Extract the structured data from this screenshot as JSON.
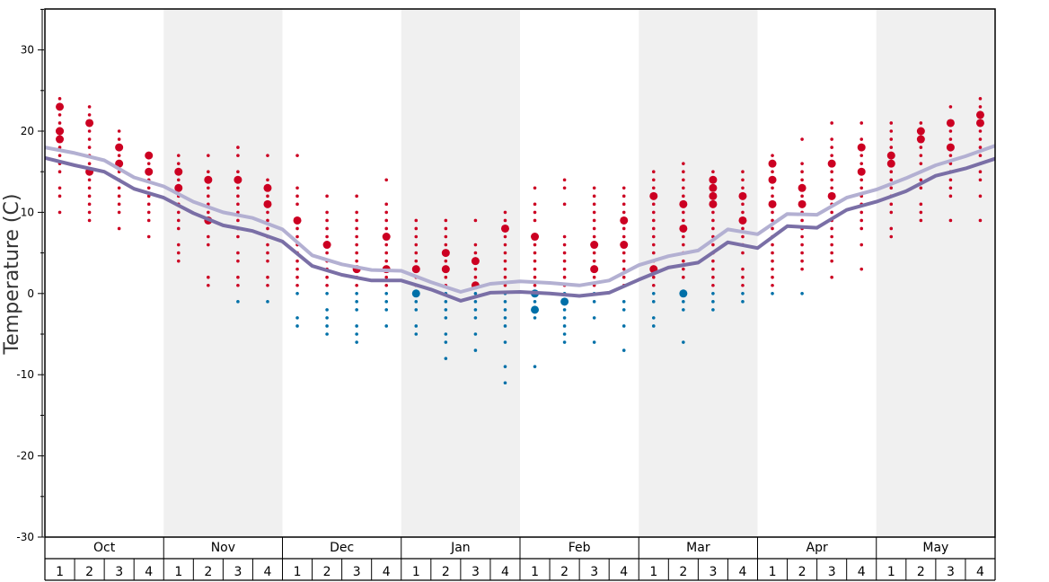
{
  "chart_data": {
    "type": "scatter",
    "title": "",
    "ylabel": "Temperature (C)",
    "ylim": [
      -30,
      35
    ],
    "yticks": [
      30,
      20,
      10,
      0,
      -10,
      -20,
      -30
    ],
    "months": [
      "Oct",
      "Nov",
      "Dec",
      "Jan",
      "Feb",
      "Mar",
      "Apr",
      "May"
    ],
    "weeks": [
      "1",
      "2",
      "3",
      "4"
    ],
    "colors": {
      "above_zero": "#cc0022",
      "below_zero": "#0070a8",
      "max_line": "#b3b0d2",
      "min_line": "#7a6fa6",
      "shade": "#f0f0f0"
    },
    "series": [
      {
        "name": "",
        "kind": "line",
        "values": [
          18.0,
          17.3,
          16.4,
          14.3,
          13.2,
          11.3,
          10.0,
          9.3,
          7.9,
          4.7,
          3.6,
          2.9,
          2.8,
          1.4,
          0.2,
          1.2,
          1.5,
          1.3,
          1.0,
          1.6,
          3.5,
          4.6,
          5.3,
          7.9,
          7.3,
          9.8,
          9.7,
          11.8,
          12.8,
          14.2,
          15.8,
          16.9,
          18.2
        ]
      },
      {
        "name": "",
        "kind": "line",
        "values": [
          16.7,
          15.8,
          15.0,
          12.9,
          11.8,
          9.9,
          8.4,
          7.7,
          6.4,
          3.4,
          2.3,
          1.6,
          1.6,
          0.5,
          -0.9,
          0.1,
          0.2,
          0.0,
          -0.3,
          0.1,
          1.7,
          3.2,
          3.8,
          6.3,
          5.6,
          8.3,
          8.1,
          10.3,
          11.3,
          12.6,
          14.5,
          15.4,
          16.6
        ]
      }
    ],
    "observations": [
      {
        "w": 0,
        "t": [
          24,
          23,
          22,
          21,
          20,
          20,
          19,
          18,
          17,
          16,
          15,
          13,
          12,
          10
        ],
        "big": [
          23,
          20,
          19
        ]
      },
      {
        "w": 1,
        "t": [
          23,
          22,
          21,
          20,
          19,
          18,
          17,
          16,
          15,
          14,
          13,
          12,
          11,
          10,
          9
        ],
        "big": [
          15,
          21
        ]
      },
      {
        "w": 2,
        "t": [
          20,
          19,
          18,
          17,
          16,
          15,
          14,
          13,
          12,
          11,
          10,
          8
        ],
        "big": [
          16,
          18
        ]
      },
      {
        "w": 3,
        "t": [
          17,
          16,
          15,
          14,
          13,
          12,
          11,
          10,
          9,
          7
        ],
        "big": [
          17,
          15
        ]
      },
      {
        "w": 4,
        "t": [
          17,
          16,
          15,
          14,
          13,
          12,
          11,
          10,
          9,
          8,
          6,
          5,
          4
        ],
        "big": [
          15,
          13
        ]
      },
      {
        "w": 5,
        "t": [
          17,
          15,
          14,
          13,
          12,
          11,
          10,
          9,
          7,
          6,
          2,
          1
        ],
        "big": [
          14,
          9
        ]
      },
      {
        "w": 6,
        "t": [
          18,
          17,
          15,
          14,
          13,
          12,
          11,
          10,
          9,
          8,
          7,
          5,
          4,
          2,
          1,
          -1
        ],
        "big": [
          14
        ]
      },
      {
        "w": 7,
        "t": [
          17,
          14,
          13,
          12,
          11,
          10,
          9,
          8,
          7,
          6,
          5,
          4,
          2,
          1,
          -1
        ],
        "big": [
          11,
          13
        ]
      },
      {
        "w": 8,
        "t": [
          17,
          13,
          12,
          11,
          9,
          8,
          7,
          6,
          5,
          4,
          3,
          2,
          1,
          0,
          -3,
          -4
        ],
        "big": [
          9
        ]
      },
      {
        "w": 9,
        "t": [
          12,
          10,
          9,
          8,
          7,
          6,
          5,
          4,
          3,
          2,
          1,
          0,
          -2,
          -3,
          -4,
          -5
        ],
        "big": [
          6
        ]
      },
      {
        "w": 10,
        "t": [
          12,
          10,
          9,
          8,
          7,
          6,
          5,
          4,
          3,
          2,
          1,
          0,
          -1,
          -2,
          -4,
          -5,
          -6
        ],
        "big": [
          3
        ]
      },
      {
        "w": 11,
        "t": [
          14,
          11,
          10,
          9,
          8,
          7,
          6,
          5,
          4,
          3,
          2,
          1,
          0,
          -1,
          -2,
          -4
        ],
        "big": [
          3,
          7
        ]
      },
      {
        "w": 12,
        "t": [
          9,
          8,
          7,
          6,
          5,
          4,
          3,
          2,
          1,
          0,
          -1,
          -2,
          -4,
          -5
        ],
        "big": [
          3,
          0
        ]
      },
      {
        "w": 13,
        "t": [
          9,
          8,
          7,
          6,
          5,
          4,
          3,
          2,
          1,
          0,
          -1,
          -2,
          -3,
          -5,
          -6,
          -8
        ],
        "big": [
          5,
          3
        ]
      },
      {
        "w": 14,
        "t": [
          9,
          6,
          5,
          4,
          3,
          2,
          1,
          0,
          -1,
          -2,
          -3,
          -5,
          -7
        ],
        "big": [
          1,
          4
        ]
      },
      {
        "w": 15,
        "t": [
          10,
          9,
          8,
          7,
          6,
          5,
          4,
          3,
          2,
          1,
          0,
          -1,
          -2,
          -3,
          -4,
          -6,
          -9,
          -11
        ],
        "big": [
          8
        ]
      },
      {
        "w": 16,
        "t": [
          13,
          11,
          10,
          9,
          7,
          6,
          5,
          4,
          3,
          2,
          1,
          0,
          -1,
          -2,
          -3,
          -9
        ],
        "big": [
          7,
          0,
          -2
        ]
      },
      {
        "w": 17,
        "t": [
          14,
          13,
          11,
          7,
          6,
          5,
          4,
          3,
          2,
          1,
          0,
          -1,
          -2,
          -3,
          -4,
          -5,
          -6
        ],
        "big": [
          -1
        ]
      },
      {
        "w": 18,
        "t": [
          13,
          12,
          11,
          10,
          9,
          8,
          7,
          6,
          5,
          4,
          3,
          2,
          1,
          0,
          -1,
          -3,
          -6
        ],
        "big": [
          6,
          3
        ]
      },
      {
        "w": 19,
        "t": [
          13,
          12,
          11,
          10,
          9,
          8,
          7,
          6,
          5,
          4,
          3,
          2,
          1,
          -1,
          -2,
          -4,
          -7
        ],
        "big": [
          9,
          6
        ]
      },
      {
        "w": 20,
        "t": [
          15,
          14,
          13,
          12,
          11,
          10,
          9,
          8,
          7,
          6,
          5,
          4,
          3,
          2,
          1,
          0,
          -1,
          -3,
          -4
        ],
        "big": [
          12,
          3
        ]
      },
      {
        "w": 21,
        "t": [
          16,
          15,
          14,
          13,
          12,
          11,
          10,
          9,
          8,
          7,
          6,
          5,
          4,
          3,
          2,
          0,
          -1,
          -2,
          -6
        ],
        "big": [
          11,
          8,
          0
        ]
      },
      {
        "w": 22,
        "t": [
          15,
          14,
          13,
          12,
          11,
          10,
          9,
          8,
          7,
          6,
          5,
          4,
          3,
          2,
          1,
          0,
          -1,
          -2
        ],
        "big": [
          14,
          13,
          12,
          11
        ]
      },
      {
        "w": 23,
        "t": [
          15,
          14,
          13,
          12,
          11,
          10,
          9,
          8,
          7,
          6,
          5,
          3,
          2,
          1,
          0,
          -1
        ],
        "big": [
          12,
          9
        ]
      },
      {
        "w": 24,
        "t": [
          17,
          16,
          15,
          14,
          13,
          12,
          11,
          10,
          9,
          8,
          7,
          6,
          5,
          4,
          3,
          2,
          1,
          0
        ],
        "big": [
          16,
          14,
          11
        ]
      },
      {
        "w": 25,
        "t": [
          19,
          16,
          15,
          14,
          13,
          12,
          11,
          10,
          9,
          8,
          7,
          6,
          5,
          4,
          3,
          0
        ],
        "big": [
          13,
          11
        ]
      },
      {
        "w": 26,
        "t": [
          21,
          19,
          18,
          17,
          16,
          15,
          14,
          13,
          12,
          11,
          10,
          9,
          8,
          7,
          6,
          5,
          4,
          2
        ],
        "big": [
          16,
          12
        ]
      },
      {
        "w": 27,
        "t": [
          21,
          19,
          18,
          17,
          16,
          15,
          14,
          13,
          12,
          11,
          10,
          9,
          8,
          6,
          3
        ],
        "big": [
          18,
          15
        ]
      },
      {
        "w": 28,
        "t": [
          21,
          20,
          19,
          18,
          17,
          16,
          15,
          14,
          13,
          12,
          11,
          10,
          8,
          7
        ],
        "big": [
          17,
          16
        ]
      },
      {
        "w": 29,
        "t": [
          21,
          20,
          19,
          18,
          17,
          16,
          15,
          14,
          13,
          11,
          10,
          9
        ],
        "big": [
          20,
          19
        ]
      },
      {
        "w": 30,
        "t": [
          23,
          21,
          20,
          19,
          18,
          17,
          16,
          15,
          14,
          13,
          12,
          9
        ],
        "big": [
          21,
          18
        ]
      },
      {
        "w": 31,
        "t": [
          24,
          23,
          22,
          21,
          20,
          19,
          18,
          17,
          16,
          15,
          14,
          12,
          9
        ],
        "big": [
          21,
          22
        ]
      }
    ]
  }
}
